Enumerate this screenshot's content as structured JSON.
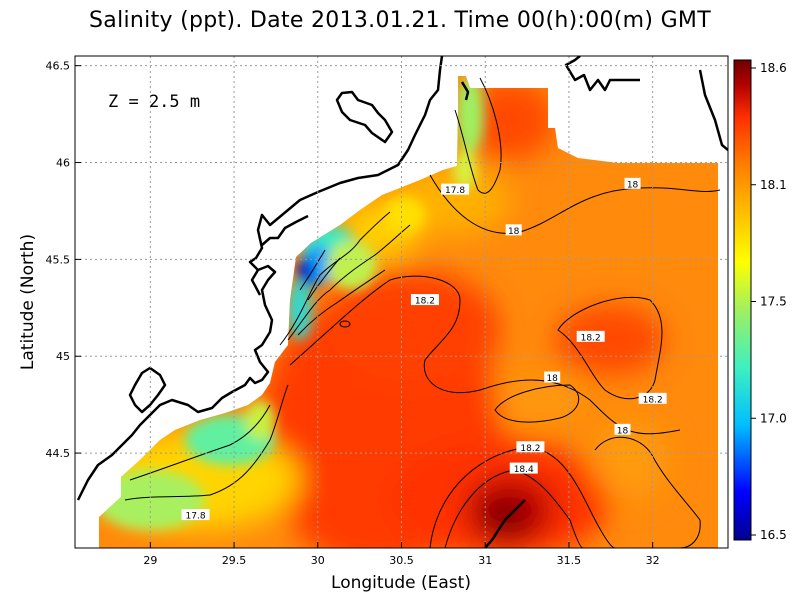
{
  "title": "Salinity (ppt). Date 2013.01.21. Time 00(h):00(m) GMT",
  "depth_annotation": "Z = 2.5 m",
  "xlabel": "Longitude (East)",
  "ylabel": "Latitude (North)",
  "x_ticks": [
    "29",
    "29.5",
    "30",
    "30.5",
    "31",
    "31.5",
    "32"
  ],
  "y_ticks": [
    "46.5",
    "46",
    "45.5",
    "45",
    "44.5"
  ],
  "colorbar": {
    "labels": [
      "18.6",
      "18.1",
      "17.5",
      "17.0",
      "16.5"
    ],
    "colors": [
      "#00008f",
      "#0000ff",
      "#00bfff",
      "#3ff0c0",
      "#a0f060",
      "#ffff00",
      "#ffbf00",
      "#ff7f00",
      "#ff3000",
      "#b00000",
      "#700000"
    ]
  },
  "contour_labels": [
    {
      "text": "17.8",
      "lon": 30.82,
      "lat": 45.86
    },
    {
      "text": "18",
      "lon": 31.88,
      "lat": 45.89
    },
    {
      "text": "18",
      "lon": 31.17,
      "lat": 45.65
    },
    {
      "text": "18.2",
      "lon": 30.64,
      "lat": 45.29
    },
    {
      "text": "18.2",
      "lon": 31.63,
      "lat": 45.1
    },
    {
      "text": "18",
      "lon": 31.4,
      "lat": 44.89
    },
    {
      "text": "18.2",
      "lon": 32.0,
      "lat": 44.78
    },
    {
      "text": "18",
      "lon": 31.82,
      "lat": 44.62
    },
    {
      "text": "18.2",
      "lon": 31.27,
      "lat": 44.53
    },
    {
      "text": "18.4",
      "lon": 31.23,
      "lat": 44.42
    },
    {
      "text": "17.8",
      "lon": 29.27,
      "lat": 44.18
    }
  ],
  "chart_data": {
    "type": "heatmap",
    "title": "Salinity (ppt). Date 2013.01.21. Time 00(h):00(m) GMT",
    "xlabel": "Longitude (East)",
    "ylabel": "Latitude (North)",
    "xlim": [
      28.55,
      32.45
    ],
    "ylim": [
      44.01,
      46.55
    ],
    "clim": [
      16.5,
      18.6
    ],
    "grid": true,
    "contour_levels": [
      17.8,
      18.0,
      18.2,
      18.4
    ]
  }
}
